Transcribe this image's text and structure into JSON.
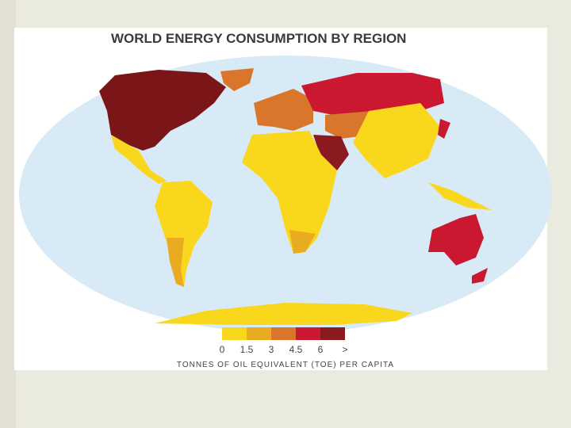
{
  "title": "WORLD ENERGY CONSUMPTION BY REGION",
  "legend": {
    "colors": [
      "#f9d71c",
      "#e9ab22",
      "#d9762b",
      "#c9182f",
      "#8a1a1f"
    ],
    "ticks": [
      "0",
      "1.5",
      "3",
      "4.5",
      "6",
      ">"
    ],
    "caption": "TONNES OF OIL EQUIVALENT (TOE) PER CAPITA"
  }
}
